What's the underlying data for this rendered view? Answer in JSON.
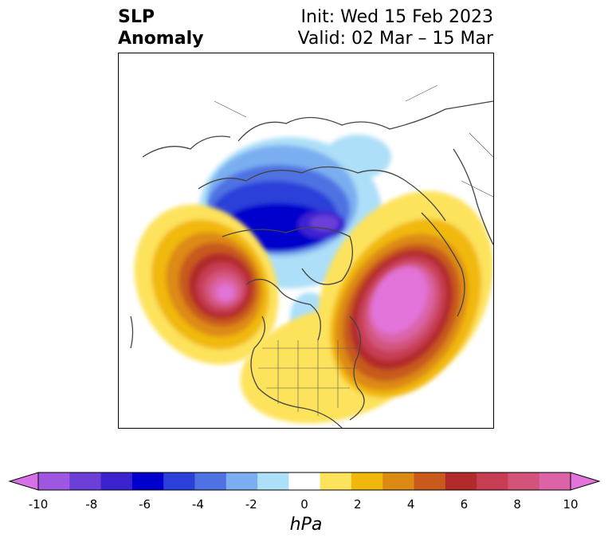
{
  "title": {
    "left_line1": "SLP",
    "left_line2": "Anomaly",
    "right_line1": "Init: Wed 15 Feb 2023",
    "right_line2": "Valid: 02 Mar – 15 Mar"
  },
  "colorbar": {
    "unit": "hPa",
    "ticks": [
      "-10",
      "-8",
      "-6",
      "-4",
      "-2",
      "0",
      "2",
      "4",
      "6",
      "8",
      "10"
    ],
    "bins": [
      {
        "range": "<-10",
        "color": "#d670e6"
      },
      {
        "range": "-10 to -9",
        "color": "#a057e0"
      },
      {
        "range": "-9 to -8",
        "color": "#6b3fd8"
      },
      {
        "range": "-8 to -7",
        "color": "#3c23d0"
      },
      {
        "range": "-7 to -6",
        "color": "#0000cc"
      },
      {
        "range": "-6 to -5",
        "color": "#2b3fd9"
      },
      {
        "range": "-5 to -4",
        "color": "#4f72e3"
      },
      {
        "range": "-4 to -3",
        "color": "#7aaef0"
      },
      {
        "range": "-3 to -2",
        "color": "#addff8"
      },
      {
        "range": "-2 to 2",
        "color": "#ffffff"
      },
      {
        "range": "2 to 3",
        "color": "#fde25b"
      },
      {
        "range": "3 to 4",
        "color": "#f1b80c"
      },
      {
        "range": "4 to 5",
        "color": "#dd8a14"
      },
      {
        "range": "5 to 6",
        "color": "#c85a1c"
      },
      {
        "range": "6 to 7",
        "color": "#b22a2a"
      },
      {
        "range": "7 to 8",
        "color": "#c73e54"
      },
      {
        "range": "8 to 9",
        "color": "#d2547a"
      },
      {
        "range": "9 to 10",
        "color": "#dc63a7"
      },
      {
        "range": ">10",
        "color": "#e273d8"
      }
    ]
  },
  "map": {
    "projection": "north-polar-stereographic",
    "region": "Northern Hemisphere",
    "features": [
      {
        "name": "negative-anomaly-polar",
        "sign": "negative",
        "peak": "< -6 hPa"
      },
      {
        "name": "positive-anomaly-north-pacific",
        "sign": "positive",
        "peak": "> 10 hPa"
      },
      {
        "name": "positive-anomaly-north-atlantic",
        "sign": "positive",
        "peak": "> 10 hPa"
      }
    ]
  }
}
